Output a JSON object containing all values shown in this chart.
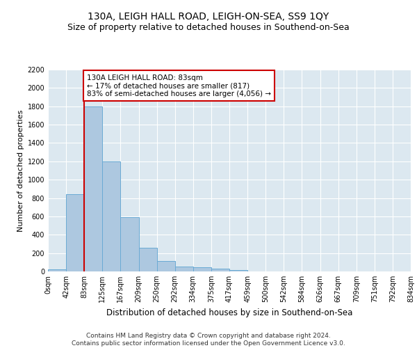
{
  "title": "130A, LEIGH HALL ROAD, LEIGH-ON-SEA, SS9 1QY",
  "subtitle": "Size of property relative to detached houses in Southend-on-Sea",
  "xlabel": "Distribution of detached houses by size in Southend-on-Sea",
  "ylabel": "Number of detached properties",
  "bar_values": [
    25,
    840,
    1800,
    1200,
    590,
    260,
    115,
    50,
    45,
    32,
    18,
    0,
    0,
    0,
    0,
    0,
    0,
    0,
    0,
    0
  ],
  "bar_labels": [
    "0sqm",
    "42sqm",
    "83sqm",
    "125sqm",
    "167sqm",
    "209sqm",
    "250sqm",
    "292sqm",
    "334sqm",
    "375sqm",
    "417sqm",
    "459sqm",
    "500sqm",
    "542sqm",
    "584sqm",
    "626sqm",
    "667sqm",
    "709sqm",
    "751sqm",
    "792sqm",
    "834sqm"
  ],
  "bar_color": "#adc8e0",
  "bar_edge_color": "#6aaad4",
  "highlight_line_color": "#cc0000",
  "highlight_idx": 2,
  "annotation_text": "130A LEIGH HALL ROAD: 83sqm\n← 17% of detached houses are smaller (817)\n83% of semi-detached houses are larger (4,056) →",
  "annotation_box_color": "#ffffff",
  "annotation_box_edge": "#cc0000",
  "ylim": [
    0,
    2200
  ],
  "yticks": [
    0,
    200,
    400,
    600,
    800,
    1000,
    1200,
    1400,
    1600,
    1800,
    2000,
    2200
  ],
  "plot_bg_color": "#dce8f0",
  "grid_color": "#ffffff",
  "footer_line1": "Contains HM Land Registry data © Crown copyright and database right 2024.",
  "footer_line2": "Contains public sector information licensed under the Open Government Licence v3.0.",
  "title_fontsize": 10,
  "subtitle_fontsize": 9,
  "xlabel_fontsize": 8.5,
  "ylabel_fontsize": 8,
  "tick_fontsize": 7,
  "annotation_fontsize": 7.5,
  "footer_fontsize": 6.5
}
